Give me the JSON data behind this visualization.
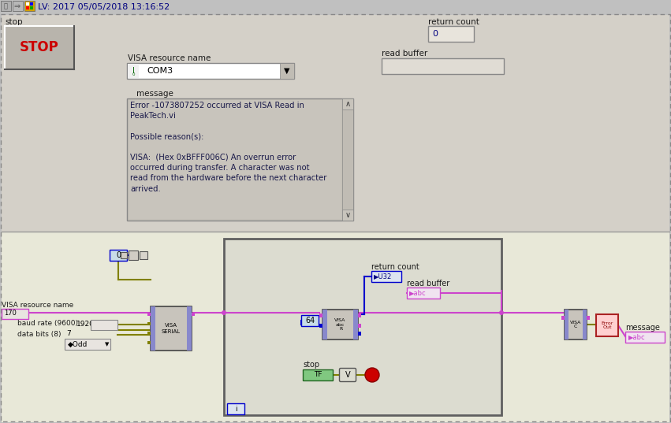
{
  "title": "LV: 2017 05/05/2018 13:16:52",
  "toolbar_bg": "#c0c0c0",
  "panel_bg": "#d4d0c8",
  "panel_bg2": "#c8c4bc",
  "white_bg": "#ffffff",
  "bd_bg": "#e8e8d8",
  "stop_label": "stop",
  "stop_btn_text": "STOP",
  "stop_btn_color": "#cc0000",
  "stop_btn_bg": "#b8b4ac",
  "visa_label": "VISA resource name",
  "visa_value": "COM3",
  "message_label": "message",
  "message_text": "Error -1073807252 occurred at VISA Read in\nPeakTech.vi\n\nPossible reason(s):\n\nVISA:  (Hex 0xBFFF006C) An overrun error\noccurred during transfer. A character was not\nread from the hardware before the next character\narrived.",
  "return_count_label": "return count",
  "return_count_value": "0",
  "read_buffer_label": "read buffer",
  "dashed_color": "#888888",
  "dark_text": "#1a1a1a",
  "blue_text": "#000080",
  "wire_pink": "#cc44cc",
  "wire_yellow": "#808000",
  "wire_blue": "#0000aa",
  "wire_green": "#008000",
  "node_bg": "#d8d8d8",
  "loop_border": "#606060",
  "const_blue_bg": "#c8dce8",
  "const_blue_border": "#0000cc",
  "pink_border": "#cc44cc",
  "green_btn_bg": "#80c880"
}
